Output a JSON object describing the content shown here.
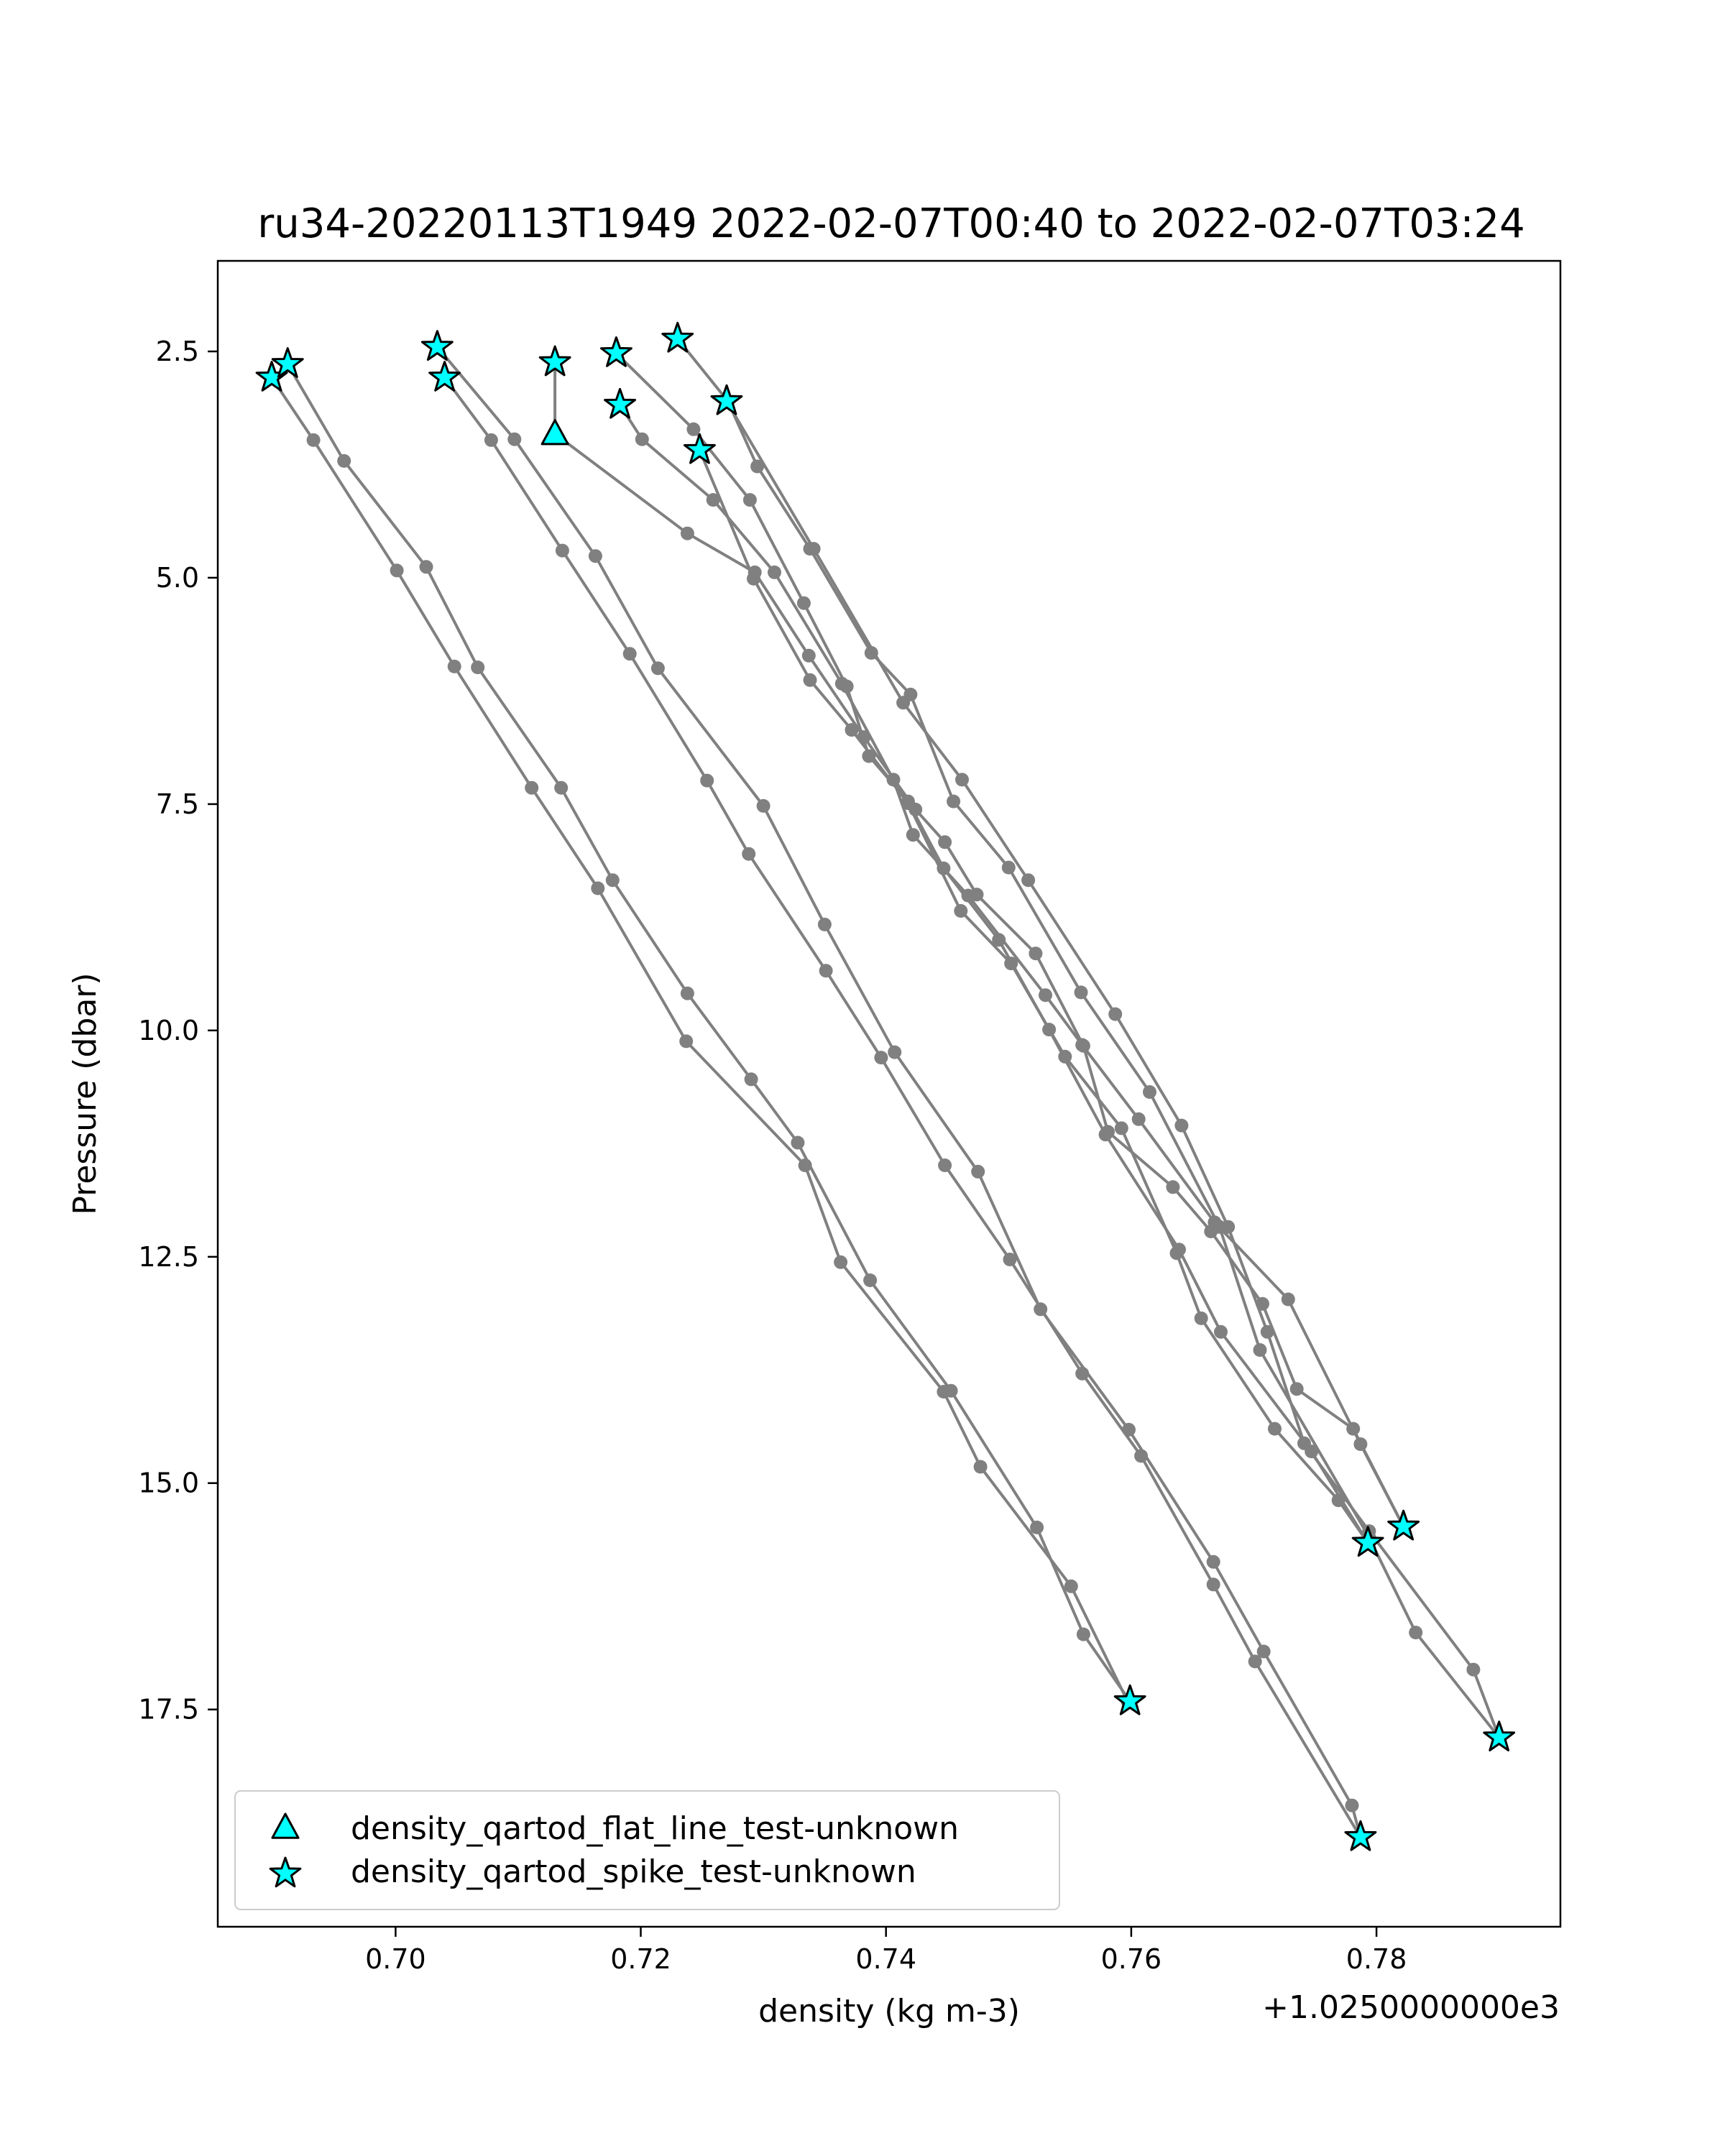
{
  "chart_data": {
    "type": "line",
    "title": "ru34-20220113T1949 2022-02-07T00:40 to 2022-02-07T03:24",
    "xlabel": "density (kg m-3)",
    "ylabel": "Pressure (dbar)",
    "x_offset_label": "+1.0250000000e3",
    "x_offset": 1025.0,
    "xlim": [
      0.6855,
      0.795
    ],
    "ylim": [
      19.9,
      1.5
    ],
    "y_inverted": true,
    "xticks": [
      0.7,
      0.72,
      0.74,
      0.76,
      0.78
    ],
    "xtick_labels": [
      "0.70",
      "0.72",
      "0.74",
      "0.76",
      "0.78"
    ],
    "yticks": [
      2.5,
      5.0,
      7.5,
      10.0,
      12.5,
      15.0,
      17.5
    ],
    "ytick_labels": [
      "2.5",
      "5.0",
      "7.5",
      "10.0",
      "12.5",
      "15.0",
      "17.5"
    ],
    "grid": false,
    "legend_position": "lower-left",
    "colors": {
      "line": "#808080",
      "marker_fill": "#00ffff",
      "marker_edge": "#000000"
    },
    "legend": [
      {
        "label": "density_qartod_flat_line_test-unknown",
        "marker": "triangle"
      },
      {
        "label": "density_qartod_spike_test-unknown",
        "marker": "star"
      }
    ],
    "series": [
      {
        "points": [
          [
            0.6899,
            2.79
          ],
          [
            0.6933,
            3.48
          ],
          [
            0.7001,
            4.92
          ],
          [
            0.7048,
            5.98
          ],
          [
            0.7111,
            7.32
          ],
          [
            0.7165,
            8.43
          ],
          [
            0.7237,
            10.12
          ],
          [
            0.7334,
            11.49
          ],
          [
            0.7363,
            12.56
          ],
          [
            0.7447,
            13.99
          ],
          [
            0.7477,
            14.82
          ],
          [
            0.7551,
            16.14
          ],
          [
            0.7597,
            17.41
          ]
        ]
      },
      {
        "points": [
          [
            0.7599,
            17.41
          ],
          [
            0.7561,
            16.67
          ],
          [
            0.7523,
            15.49
          ],
          [
            0.7453,
            13.98
          ],
          [
            0.7387,
            12.76
          ],
          [
            0.7328,
            11.24
          ],
          [
            0.729,
            10.54
          ],
          [
            0.7238,
            9.59
          ],
          [
            0.7177,
            8.34
          ],
          [
            0.7135,
            7.32
          ],
          [
            0.7067,
            5.99
          ],
          [
            0.7025,
            4.88
          ],
          [
            0.6958,
            3.71
          ],
          [
            0.6912,
            2.64
          ]
        ]
      },
      {
        "points": [
          [
            0.704,
            2.79
          ],
          [
            0.7078,
            3.48
          ],
          [
            0.7136,
            4.7
          ],
          [
            0.7191,
            5.84
          ],
          [
            0.7254,
            7.24
          ],
          [
            0.7288,
            8.05
          ],
          [
            0.7351,
            9.34
          ],
          [
            0.7396,
            10.3
          ],
          [
            0.7448,
            11.49
          ],
          [
            0.7501,
            12.53
          ],
          [
            0.756,
            13.79
          ],
          [
            0.7608,
            14.7
          ],
          [
            0.7667,
            16.12
          ],
          [
            0.7701,
            16.97
          ],
          [
            0.7787,
            18.91
          ]
        ]
      },
      {
        "points": [
          [
            0.7787,
            18.91
          ],
          [
            0.778,
            18.56
          ],
          [
            0.7708,
            16.86
          ],
          [
            0.7667,
            15.87
          ],
          [
            0.7598,
            14.41
          ],
          [
            0.7526,
            13.08
          ],
          [
            0.7475,
            11.56
          ],
          [
            0.7407,
            10.24
          ],
          [
            0.735,
            8.83
          ],
          [
            0.73,
            7.52
          ],
          [
            0.7214,
            6.0
          ],
          [
            0.7163,
            4.76
          ],
          [
            0.7097,
            3.47
          ],
          [
            0.7034,
            2.45
          ]
        ]
      },
      {
        "points": [
          [
            0.713,
            2.62
          ],
          [
            0.713,
            3.41
          ],
          [
            0.7238,
            4.51
          ],
          [
            0.7293,
            4.94
          ],
          [
            0.7337,
            5.86
          ],
          [
            0.7382,
            6.76
          ],
          [
            0.7424,
            7.56
          ],
          [
            0.7448,
            7.92
          ],
          [
            0.7474,
            8.5
          ],
          [
            0.7522,
            9.15
          ],
          [
            0.7561,
            10.17
          ],
          [
            0.7581,
            11.12
          ],
          [
            0.7634,
            11.73
          ],
          [
            0.7665,
            12.22
          ],
          [
            0.7707,
            13.02
          ],
          [
            0.7735,
            13.96
          ],
          [
            0.7781,
            14.4
          ],
          [
            0.7822,
            15.48
          ]
        ]
      },
      {
        "points": [
          [
            0.7822,
            15.48
          ],
          [
            0.7787,
            14.57
          ],
          [
            0.7728,
            12.97
          ],
          [
            0.7668,
            12.12
          ],
          [
            0.7606,
            10.98
          ],
          [
            0.756,
            10.16
          ],
          [
            0.753,
            9.61
          ],
          [
            0.7467,
            8.51
          ],
          [
            0.7422,
            7.84
          ],
          [
            0.7406,
            7.23
          ],
          [
            0.7364,
            6.17
          ],
          [
            0.7309,
            4.94
          ],
          [
            0.7259,
            4.14
          ],
          [
            0.7201,
            3.47
          ],
          [
            0.7183,
            3.09
          ]
        ]
      },
      {
        "points": [
          [
            0.718,
            2.52
          ],
          [
            0.7243,
            3.36
          ],
          [
            0.7289,
            4.14
          ],
          [
            0.7333,
            5.28
          ],
          [
            0.7368,
            6.2
          ],
          [
            0.7386,
            6.97
          ],
          [
            0.7418,
            7.47
          ],
          [
            0.7447,
            8.21
          ],
          [
            0.7492,
            9.0
          ],
          [
            0.7533,
            9.99
          ],
          [
            0.7579,
            11.15
          ],
          [
            0.7639,
            12.42
          ],
          [
            0.7673,
            13.33
          ],
          [
            0.7747,
            14.65
          ],
          [
            0.7793,
            15.66
          ]
        ]
      },
      {
        "points": [
          [
            0.7793,
            15.66
          ],
          [
            0.7769,
            15.19
          ],
          [
            0.7717,
            14.4
          ],
          [
            0.7657,
            13.18
          ],
          [
            0.7637,
            12.46
          ],
          [
            0.7592,
            11.08
          ],
          [
            0.7546,
            10.29
          ],
          [
            0.7502,
            9.26
          ],
          [
            0.7461,
            8.68
          ],
          [
            0.7418,
            7.49
          ],
          [
            0.7372,
            6.68
          ],
          [
            0.7338,
            6.13
          ],
          [
            0.7292,
            5.01
          ],
          [
            0.7248,
            3.59
          ]
        ]
      },
      {
        "points": [
          [
            0.723,
            2.36
          ],
          [
            0.7271,
            3.05
          ],
          [
            0.7295,
            3.77
          ],
          [
            0.7338,
            4.68
          ],
          [
            0.7388,
            5.83
          ],
          [
            0.742,
            6.29
          ],
          [
            0.7455,
            7.47
          ],
          [
            0.75,
            8.2
          ],
          [
            0.7559,
            9.58
          ],
          [
            0.7615,
            10.68
          ],
          [
            0.7672,
            12.17
          ],
          [
            0.7705,
            13.53
          ],
          [
            0.7794,
            15.6
          ],
          [
            0.7832,
            16.65
          ],
          [
            0.79,
            17.81
          ]
        ]
      },
      {
        "points": [
          [
            0.79,
            17.81
          ],
          [
            0.7879,
            17.06
          ],
          [
            0.7794,
            15.53
          ],
          [
            0.7741,
            14.56
          ],
          [
            0.7711,
            13.33
          ],
          [
            0.7679,
            12.17
          ],
          [
            0.7641,
            11.05
          ],
          [
            0.7587,
            9.82
          ],
          [
            0.7516,
            8.34
          ],
          [
            0.7462,
            7.23
          ],
          [
            0.7414,
            6.38
          ],
          [
            0.7341,
            4.68
          ],
          [
            0.727,
            3.05
          ]
        ]
      }
    ],
    "flagged": [
      {
        "test": "density_qartod_flat_line_test-unknown",
        "marker": "triangle",
        "points": [
          [
            0.713,
            3.41
          ]
        ]
      },
      {
        "test": "density_qartod_spike_test-unknown",
        "marker": "star",
        "points": [
          [
            0.6899,
            2.79
          ],
          [
            0.6912,
            2.64
          ],
          [
            0.7034,
            2.45
          ],
          [
            0.704,
            2.79
          ],
          [
            0.713,
            2.62
          ],
          [
            0.718,
            2.52
          ],
          [
            0.7183,
            3.09
          ],
          [
            0.723,
            2.36
          ],
          [
            0.7248,
            3.59
          ],
          [
            0.727,
            3.05
          ],
          [
            0.7599,
            17.41
          ],
          [
            0.7787,
            18.91
          ],
          [
            0.7793,
            15.66
          ],
          [
            0.7822,
            15.48
          ],
          [
            0.79,
            17.81
          ]
        ]
      }
    ]
  }
}
